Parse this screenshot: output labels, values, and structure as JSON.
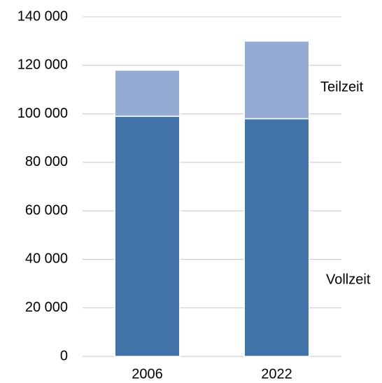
{
  "chart_data": {
    "type": "stacked_bar",
    "categories": [
      "2006",
      "2022"
    ],
    "series": [
      {
        "name": "Vollzeit",
        "color": "#4273a8",
        "values": [
          99000,
          98000
        ]
      },
      {
        "name": "Teilzeit",
        "color": "#96abd4",
        "values": [
          19000,
          32000
        ]
      }
    ],
    "ylim": [
      0,
      140000
    ],
    "yticks": [
      0,
      {
        "value": 20000,
        "label": "20 000"
      },
      {
        "value": 40000,
        "label": "40 000"
      },
      {
        "value": 60000,
        "label": "60 000"
      },
      {
        "value": 80000,
        "label": "80 000"
      },
      {
        "value": 100000,
        "label": "100 000"
      },
      {
        "value": 120000,
        "label": "120 000"
      },
      {
        "value": 140000,
        "label": "140 000"
      }
    ],
    "grid": true
  }
}
